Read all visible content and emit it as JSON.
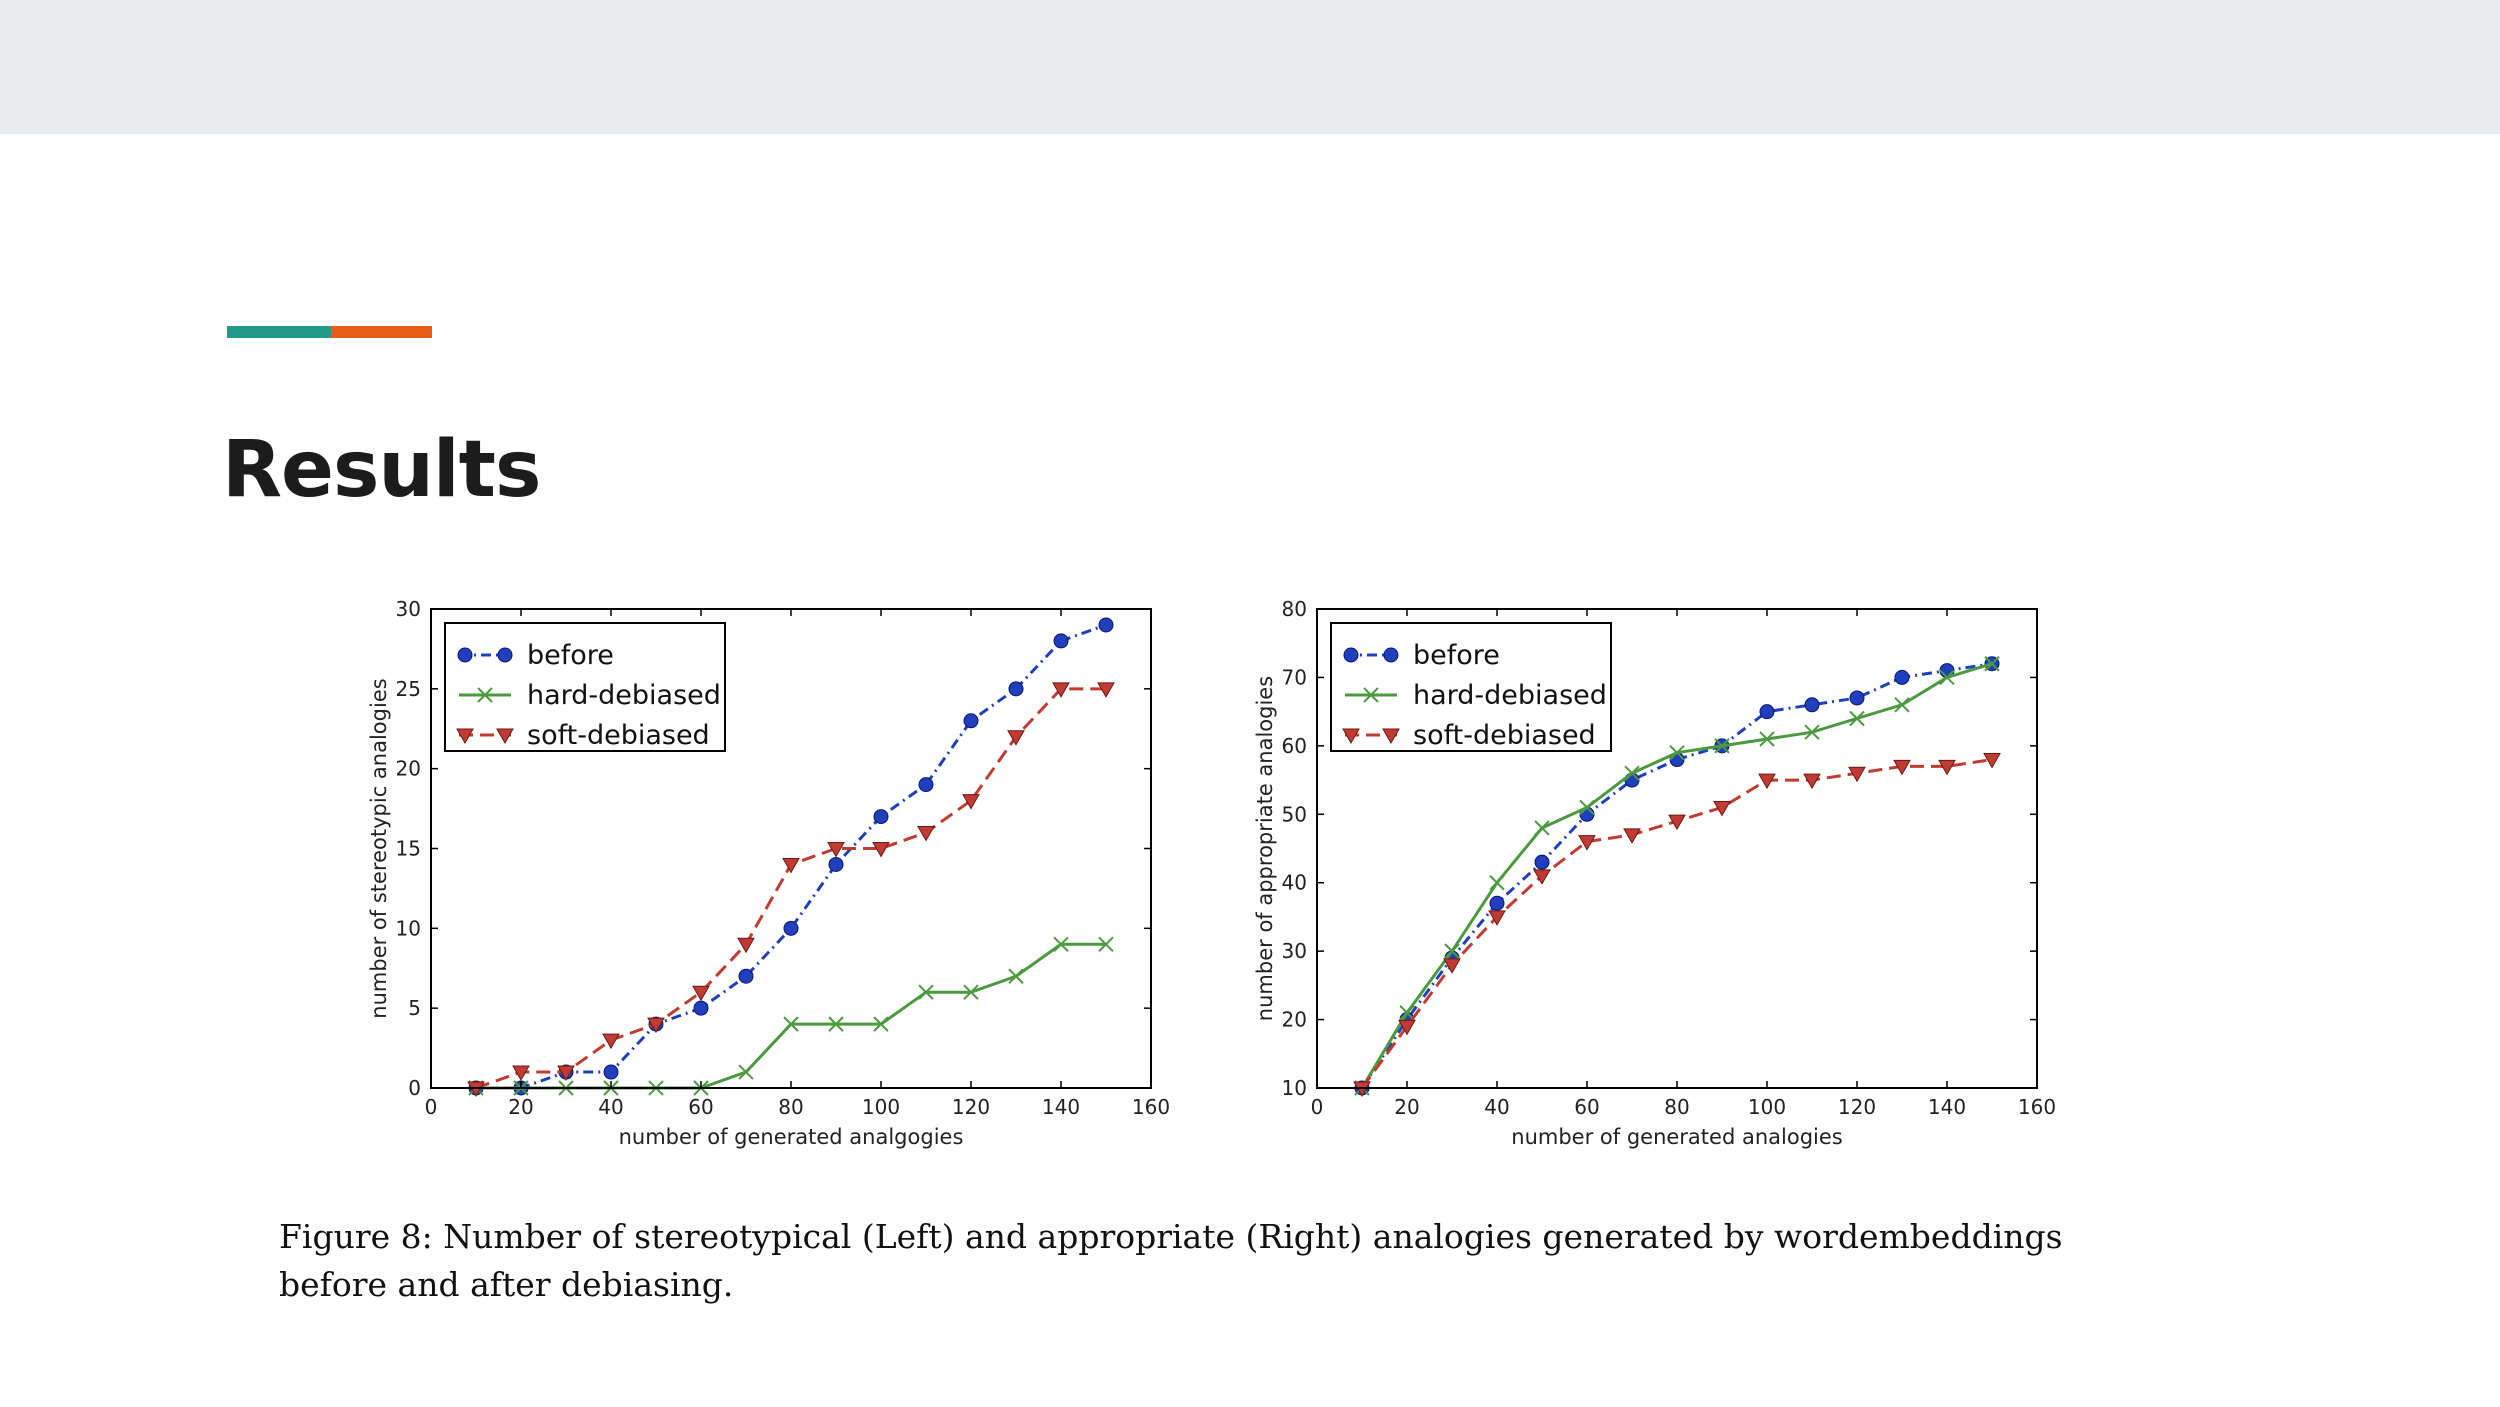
{
  "slide": {
    "title": "Results",
    "accent_colors": [
      "#1f9a8a",
      "#e85d13"
    ],
    "caption_line1": "Figure 8: Number of stereotypical (Left) and appropriate (Right) analogies generated by wordembeddings",
    "caption_line2": "before and after debiasing."
  },
  "chart_data": [
    {
      "type": "line",
      "xlabel": "number of generated analgogies",
      "ylabel": "number of stereotypic analogies",
      "xlim": [
        0,
        160
      ],
      "ylim": [
        0,
        30
      ],
      "xticks": [
        0,
        20,
        40,
        60,
        80,
        100,
        120,
        140,
        160
      ],
      "yticks": [
        0,
        5,
        10,
        15,
        20,
        25,
        30
      ],
      "grid": false,
      "legend": "top-left",
      "x": [
        10,
        20,
        30,
        40,
        50,
        60,
        70,
        80,
        90,
        100,
        110,
        120,
        130,
        140,
        150
      ],
      "series": [
        {
          "name": "before",
          "color": "#1f3fbf",
          "marker": "circle",
          "linestyle": "dashdot",
          "values": [
            0,
            0,
            1,
            1,
            4,
            5,
            7,
            10,
            14,
            17,
            19,
            23,
            25,
            28,
            29
          ]
        },
        {
          "name": "hard-debiased",
          "color": "#4c9a3f",
          "marker": "x",
          "linestyle": "solid",
          "values": [
            0,
            0,
            0,
            0,
            0,
            0,
            1,
            4,
            4,
            4,
            6,
            6,
            7,
            9,
            9
          ]
        },
        {
          "name": "soft-debiased",
          "color": "#c23b32",
          "marker": "triangle-down",
          "linestyle": "dashed",
          "values": [
            0,
            1,
            1,
            3,
            4,
            6,
            9,
            14,
            15,
            15,
            16,
            18,
            22,
            25,
            25
          ]
        }
      ]
    },
    {
      "type": "line",
      "xlabel": "number of generated analogies",
      "ylabel": "number of appropriate analogies",
      "xlim": [
        0,
        160
      ],
      "ylim": [
        10,
        80
      ],
      "xticks": [
        0,
        20,
        40,
        60,
        80,
        100,
        120,
        140,
        160
      ],
      "yticks": [
        10,
        20,
        30,
        40,
        50,
        60,
        70,
        80
      ],
      "grid": false,
      "legend": "top-left",
      "x": [
        10,
        20,
        30,
        40,
        50,
        60,
        70,
        80,
        90,
        100,
        110,
        120,
        130,
        140,
        150
      ],
      "series": [
        {
          "name": "before",
          "color": "#1f3fbf",
          "marker": "circle",
          "linestyle": "dashdot",
          "values": [
            10,
            20,
            29,
            37,
            43,
            50,
            55,
            58,
            60,
            65,
            66,
            67,
            70,
            71,
            72
          ]
        },
        {
          "name": "hard-debiased",
          "color": "#4c9a3f",
          "marker": "x",
          "linestyle": "solid",
          "values": [
            10,
            21,
            30,
            40,
            48,
            51,
            56,
            59,
            60,
            61,
            62,
            64,
            66,
            70,
            72
          ]
        },
        {
          "name": "soft-debiased",
          "color": "#c23b32",
          "marker": "triangle-down",
          "linestyle": "dashed",
          "values": [
            10,
            19,
            28,
            35,
            41,
            46,
            47,
            49,
            51,
            55,
            55,
            56,
            57,
            57,
            58
          ]
        }
      ]
    }
  ]
}
